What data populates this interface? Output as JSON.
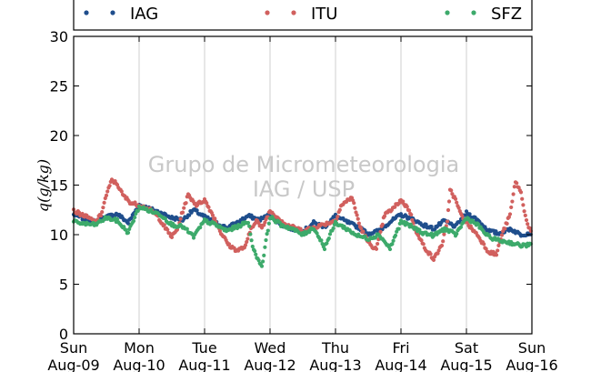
{
  "chart_data": {
    "type": "scatter",
    "ylabel": "q(g/kg)",
    "ylim": [
      0,
      30
    ],
    "yticks": [
      0,
      5,
      10,
      15,
      20,
      25,
      30
    ],
    "xlim": [
      "2014-08-09 00:00",
      "2014-08-16 00:00"
    ],
    "xticks": [
      {
        "date": "2014-08-09",
        "day": "Sun",
        "label": "Aug-09"
      },
      {
        "date": "2014-08-10",
        "day": "Mon",
        "label": "Aug-10"
      },
      {
        "date": "2014-08-11",
        "day": "Tue",
        "label": "Aug-11"
      },
      {
        "date": "2014-08-12",
        "day": "Wed",
        "label": "Aug-12"
      },
      {
        "date": "2014-08-13",
        "day": "Thu",
        "label": "Aug-13"
      },
      {
        "date": "2014-08-14",
        "day": "Fri",
        "label": "Aug-14"
      },
      {
        "date": "2014-08-15",
        "day": "Sat",
        "label": "Aug-15"
      },
      {
        "date": "2014-08-16",
        "day": "Sun",
        "label": "Aug-16"
      }
    ],
    "grid": "vertical",
    "legend": {
      "position": "top",
      "columns": 3
    },
    "watermark": [
      "Grupo de Micrometeorologia",
      "IAG / USP"
    ],
    "series": [
      {
        "name": "IAG",
        "color": "#1f4e8c",
        "points": [
          [
            "2014-08-09 00:00",
            12.0
          ],
          [
            "2014-08-09 04:00",
            11.6
          ],
          [
            "2014-08-09 08:00",
            11.3
          ],
          [
            "2014-08-09 12:00",
            11.8
          ],
          [
            "2014-08-09 16:00",
            12.1
          ],
          [
            "2014-08-09 20:00",
            11.2
          ],
          [
            "2014-08-10 00:00",
            13.0
          ],
          [
            "2014-08-10 04:00",
            12.6
          ],
          [
            "2014-08-10 08:00",
            12.2
          ],
          [
            "2014-08-10 12:00",
            11.7
          ],
          [
            "2014-08-10 16:00",
            11.5
          ],
          [
            "2014-08-10 20:00",
            12.5
          ],
          [
            "2014-08-11 00:00",
            11.8
          ],
          [
            "2014-08-11 04:00",
            11.2
          ],
          [
            "2014-08-11 08:00",
            10.7
          ],
          [
            "2014-08-11 12:00",
            11.2
          ],
          [
            "2014-08-11 16:00",
            11.9
          ],
          [
            "2014-08-11 20:00",
            11.5
          ],
          [
            "2014-08-12 00:00",
            12.0
          ],
          [
            "2014-08-12 04:00",
            11.0
          ],
          [
            "2014-08-12 08:00",
            10.6
          ],
          [
            "2014-08-12 12:00",
            10.3
          ],
          [
            "2014-08-12 16:00",
            11.2
          ],
          [
            "2014-08-12 20:00",
            10.8
          ],
          [
            "2014-08-13 00:00",
            11.9
          ],
          [
            "2014-08-13 04:00",
            11.3
          ],
          [
            "2014-08-13 08:00",
            10.8
          ],
          [
            "2014-08-13 12:00",
            10.1
          ],
          [
            "2014-08-13 16:00",
            10.4
          ],
          [
            "2014-08-13 20:00",
            11.3
          ],
          [
            "2014-08-14 00:00",
            12.0
          ],
          [
            "2014-08-14 04:00",
            11.6
          ],
          [
            "2014-08-14 08:00",
            11.0
          ],
          [
            "2014-08-14 12:00",
            10.6
          ],
          [
            "2014-08-14 16:00",
            11.4
          ],
          [
            "2014-08-14 20:00",
            10.8
          ],
          [
            "2014-08-15 00:00",
            12.2
          ],
          [
            "2014-08-15 04:00",
            11.5
          ],
          [
            "2014-08-15 08:00",
            10.4
          ],
          [
            "2014-08-15 12:00",
            10.1
          ],
          [
            "2014-08-15 16:00",
            10.6
          ],
          [
            "2014-08-15 20:00",
            10.0
          ],
          [
            "2014-08-16 00:00",
            10.2
          ]
        ]
      },
      {
        "name": "ITU",
        "color": "#d1605e",
        "points": [
          [
            "2014-08-09 00:00",
            12.4
          ],
          [
            "2014-08-09 04:00",
            11.9
          ],
          [
            "2014-08-09 08:00",
            11.3
          ],
          [
            "2014-08-09 10:00",
            12.0
          ],
          [
            "2014-08-09 12:00",
            14.0
          ],
          [
            "2014-08-09 14:00",
            15.5
          ],
          [
            "2014-08-09 16:00",
            15.1
          ],
          [
            "2014-08-09 18:00",
            14.0
          ],
          [
            "2014-08-09 21:00",
            13.2
          ],
          [
            "2014-08-10 00:00",
            13.0
          ],
          [
            "2014-08-10 04:00",
            12.5
          ],
          [
            "2014-08-10 07:00",
            11.8
          ],
          [
            "2014-08-10 10:00",
            10.5
          ],
          [
            "2014-08-10 12:00",
            9.8
          ],
          [
            "2014-08-10 14:00",
            10.5
          ],
          [
            "2014-08-10 16:00",
            12.4
          ],
          [
            "2014-08-10 18:00",
            14.0
          ],
          [
            "2014-08-10 21:00",
            13.0
          ],
          [
            "2014-08-11 00:00",
            13.5
          ],
          [
            "2014-08-11 03:00",
            12.0
          ],
          [
            "2014-08-11 06:00",
            10.2
          ],
          [
            "2014-08-11 09:00",
            8.9
          ],
          [
            "2014-08-11 12:00",
            8.4
          ],
          [
            "2014-08-11 15:00",
            8.8
          ],
          [
            "2014-08-11 17:00",
            10.6
          ],
          [
            "2014-08-11 19:00",
            11.5
          ],
          [
            "2014-08-11 21:00",
            10.6
          ],
          [
            "2014-08-12 00:00",
            12.4
          ],
          [
            "2014-08-12 06:00",
            11.0
          ],
          [
            "2014-08-12 12:00",
            10.4
          ],
          [
            "2014-08-12 18:00",
            10.9
          ],
          [
            "2014-08-13 00:00",
            11.4
          ],
          [
            "2014-08-13 02:00",
            12.9
          ],
          [
            "2014-08-13 06:00",
            13.8
          ],
          [
            "2014-08-13 09:00",
            10.8
          ],
          [
            "2014-08-13 12:00",
            9.2
          ],
          [
            "2014-08-13 15:00",
            8.5
          ],
          [
            "2014-08-13 18:00",
            12.0
          ],
          [
            "2014-08-13 21:00",
            12.6
          ],
          [
            "2014-08-14 00:00",
            13.5
          ],
          [
            "2014-08-14 03:00",
            12.5
          ],
          [
            "2014-08-14 06:00",
            10.0
          ],
          [
            "2014-08-14 09:00",
            8.6
          ],
          [
            "2014-08-14 12:00",
            7.5
          ],
          [
            "2014-08-14 15:00",
            9.0
          ],
          [
            "2014-08-14 17:00",
            11.2
          ],
          [
            "2014-08-14 18:00",
            14.6
          ],
          [
            "2014-08-14 20:00",
            13.5
          ],
          [
            "2014-08-14 22:00",
            12.0
          ],
          [
            "2014-08-15 00:00",
            11.2
          ],
          [
            "2014-08-15 04:00",
            10.0
          ],
          [
            "2014-08-15 08:00",
            8.3
          ],
          [
            "2014-08-15 11:00",
            8.0
          ],
          [
            "2014-08-15 13:00",
            10.0
          ],
          [
            "2014-08-15 16:00",
            12.0
          ],
          [
            "2014-08-15 18:00",
            15.4
          ],
          [
            "2014-08-15 20:00",
            14.2
          ],
          [
            "2014-08-15 22:00",
            11.4
          ],
          [
            "2014-08-16 00:00",
            10.0
          ]
        ]
      },
      {
        "name": "SFZ",
        "color": "#3daa6b",
        "points": [
          [
            "2014-08-09 00:00",
            11.3
          ],
          [
            "2014-08-09 04:00",
            11.1
          ],
          [
            "2014-08-09 08:00",
            11.0
          ],
          [
            "2014-08-09 12:00",
            11.7
          ],
          [
            "2014-08-09 16:00",
            11.4
          ],
          [
            "2014-08-09 20:00",
            10.2
          ],
          [
            "2014-08-10 00:00",
            12.8
          ],
          [
            "2014-08-10 04:00",
            12.4
          ],
          [
            "2014-08-10 08:00",
            12.0
          ],
          [
            "2014-08-10 12:00",
            11.0
          ],
          [
            "2014-08-10 16:00",
            10.8
          ],
          [
            "2014-08-10 20:00",
            9.8
          ],
          [
            "2014-08-11 00:00",
            11.4
          ],
          [
            "2014-08-11 04:00",
            11.0
          ],
          [
            "2014-08-11 08:00",
            10.4
          ],
          [
            "2014-08-11 12:00",
            10.8
          ],
          [
            "2014-08-11 16:00",
            11.3
          ],
          [
            "2014-08-11 18:00",
            8.4
          ],
          [
            "2014-08-11 21:00",
            6.8
          ],
          [
            "2014-08-12 00:00",
            11.8
          ],
          [
            "2014-08-12 04:00",
            11.0
          ],
          [
            "2014-08-12 08:00",
            10.6
          ],
          [
            "2014-08-12 12:00",
            10.0
          ],
          [
            "2014-08-12 16:00",
            10.7
          ],
          [
            "2014-08-12 20:00",
            8.7
          ],
          [
            "2014-08-13 00:00",
            11.2
          ],
          [
            "2014-08-13 04:00",
            10.6
          ],
          [
            "2014-08-13 08:00",
            9.9
          ],
          [
            "2014-08-13 12:00",
            9.6
          ],
          [
            "2014-08-13 16:00",
            10.0
          ],
          [
            "2014-08-13 20:00",
            8.6
          ],
          [
            "2014-08-14 00:00",
            11.3
          ],
          [
            "2014-08-14 04:00",
            10.8
          ],
          [
            "2014-08-14 08:00",
            10.2
          ],
          [
            "2014-08-14 12:00",
            9.9
          ],
          [
            "2014-08-14 16:00",
            10.6
          ],
          [
            "2014-08-14 20:00",
            10.0
          ],
          [
            "2014-08-15 00:00",
            11.7
          ],
          [
            "2014-08-15 04:00",
            11.0
          ],
          [
            "2014-08-15 08:00",
            9.8
          ],
          [
            "2014-08-15 12:00",
            9.4
          ],
          [
            "2014-08-15 16:00",
            9.2
          ],
          [
            "2014-08-15 20:00",
            8.9
          ],
          [
            "2014-08-16 00:00",
            9.0
          ]
        ]
      }
    ]
  }
}
